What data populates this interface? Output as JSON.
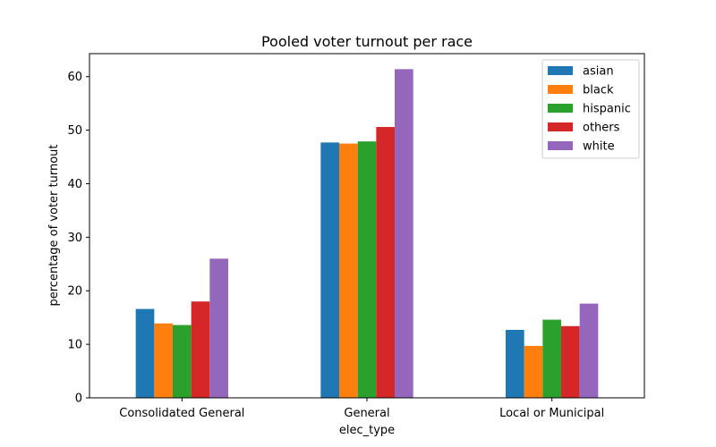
{
  "chart_data": {
    "type": "bar",
    "title": "Pooled voter turnout per race",
    "xlabel": "elec_type",
    "ylabel": "percentage of voter turnout",
    "categories": [
      "Consolidated General",
      "General",
      "Local or Municipal"
    ],
    "ylim": [
      0,
      64.3
    ],
    "yticks": [
      0,
      10,
      20,
      30,
      40,
      50,
      60
    ],
    "grid": false,
    "legend_position": "top-right",
    "series": [
      {
        "name": "asian",
        "color": "#1f77b4",
        "values": [
          16.6,
          47.7,
          12.7
        ]
      },
      {
        "name": "black",
        "color": "#ff7f0e",
        "values": [
          13.9,
          47.5,
          9.7
        ]
      },
      {
        "name": "hispanic",
        "color": "#2ca02c",
        "values": [
          13.6,
          47.9,
          14.6
        ]
      },
      {
        "name": "others",
        "color": "#d62728",
        "values": [
          18.0,
          50.6,
          13.4
        ]
      },
      {
        "name": "white",
        "color": "#9467bd",
        "values": [
          26.0,
          61.4,
          17.6
        ]
      }
    ]
  }
}
